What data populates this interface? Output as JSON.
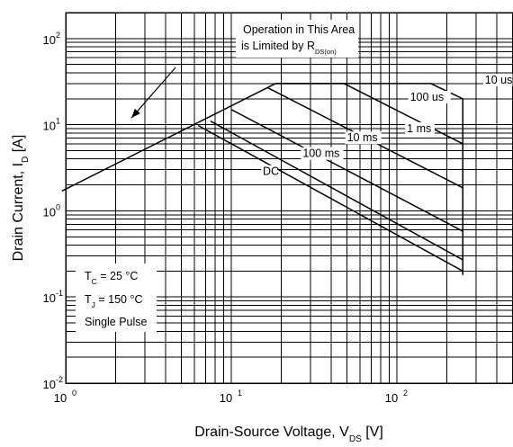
{
  "chart_data": {
    "type": "line",
    "title": "",
    "xlabel": {
      "main": "Drain-Source Voltage, V",
      "sub": "DS",
      "unit": " [V]"
    },
    "ylabel": {
      "main": "Drain Current, I",
      "sub": "D",
      "unit": " [A]"
    },
    "xscale": "log",
    "yscale": "log",
    "xlim": [
      1,
      500
    ],
    "ylim": [
      0.01,
      200
    ],
    "grid": true,
    "x_ticks": [
      {
        "value": 1,
        "base": "10",
        "exp": "0"
      },
      {
        "value": 10,
        "base": "10",
        "exp": "1"
      },
      {
        "value": 100,
        "base": "10",
        "exp": "2"
      }
    ],
    "y_ticks": [
      {
        "value": 0.01,
        "base": "10",
        "exp": "-2"
      },
      {
        "value": 0.1,
        "base": "10",
        "exp": "-1"
      },
      {
        "value": 1,
        "base": "10",
        "exp": "0"
      },
      {
        "value": 10,
        "base": "10",
        "exp": "1"
      },
      {
        "value": 100,
        "base": "10",
        "exp": "2"
      }
    ],
    "series": [
      {
        "name": "10 us",
        "points": [
          [
            0.95,
            1.7
          ],
          [
            18.5,
            30
          ],
          [
            160,
            30
          ],
          [
            250,
            20
          ],
          [
            250,
            0.18
          ]
        ]
      },
      {
        "name": "100 us",
        "points": [
          [
            18.5,
            30
          ],
          [
            48,
            30
          ],
          [
            250,
            6
          ]
        ]
      },
      {
        "name": "1 ms",
        "points": [
          [
            16.5,
            27
          ],
          [
            250,
            1.85
          ]
        ]
      },
      {
        "name": "10 ms",
        "points": [
          [
            10,
            15
          ],
          [
            250,
            0.58
          ]
        ]
      },
      {
        "name": "100 ms",
        "points": [
          [
            7.5,
            11
          ],
          [
            250,
            0.27
          ]
        ]
      },
      {
        "name": "DC",
        "points": [
          [
            6.3,
            9.8
          ],
          [
            250,
            0.2
          ]
        ]
      }
    ],
    "curve_labels": [
      {
        "text": "10 us",
        "x": 340,
        "y": 30
      },
      {
        "text": "100 us",
        "x": 120,
        "y": 19
      },
      {
        "text": "1 ms",
        "x": 115,
        "y": 8.2
      },
      {
        "text": "10 ms",
        "x": 50,
        "y": 6.4
      },
      {
        "text": "100 ms",
        "x": 27,
        "y": 4.2
      },
      {
        "text": "DC",
        "x": 15.5,
        "y": 2.6
      }
    ],
    "annotations": [
      {
        "lines": [
          {
            "text": "Operation in This Area",
            "sub": ""
          },
          {
            "text": "is Limited by R",
            "sub": "DS(on)"
          }
        ],
        "arrow_from": [
          4.6,
          46
        ],
        "arrow_to": [
          2.5,
          12
        ]
      },
      {
        "lines": [
          {
            "text": "T",
            "sub": "C",
            "rest": " = 25 °C"
          },
          {
            "text": "T",
            "sub": "J",
            "rest": " = 150 °C"
          },
          {
            "text": "Single Pulse",
            "sub": "",
            "rest": ""
          }
        ]
      }
    ]
  }
}
